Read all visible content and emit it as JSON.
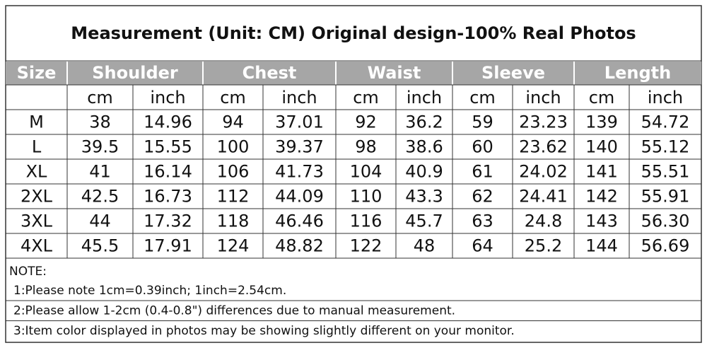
{
  "title": "Measurement (Unit: CM) Original design-100% Real Photos",
  "table": {
    "header": [
      "Size",
      "Shoulder",
      "Chest",
      "Waist",
      "Sleeve",
      "Length"
    ],
    "units": [
      "cm",
      "inch",
      "cm",
      "inch",
      "cm",
      "inch",
      "cm",
      "inch",
      "cm",
      "inch"
    ],
    "rows": [
      [
        "M",
        "38",
        "14.96",
        "94",
        "37.01",
        "92",
        "36.2",
        "59",
        "23.23",
        "139",
        "54.72"
      ],
      [
        "L",
        "39.5",
        "15.55",
        "100",
        "39.37",
        "98",
        "38.6",
        "60",
        "23.62",
        "140",
        "55.12"
      ],
      [
        "XL",
        "41",
        "16.14",
        "106",
        "41.73",
        "104",
        "40.9",
        "61",
        "24.02",
        "141",
        "55.51"
      ],
      [
        "2XL",
        "42.5",
        "16.73",
        "112",
        "44.09",
        "110",
        "43.3",
        "62",
        "24.41",
        "142",
        "55.91"
      ],
      [
        "3XL",
        "44",
        "17.32",
        "118",
        "46.46",
        "116",
        "45.7",
        "63",
        "24.8",
        "143",
        "56.30"
      ],
      [
        "4XL",
        "45.5",
        "17.91",
        "124",
        "48.82",
        "122",
        "48",
        "64",
        "25.2",
        "144",
        "56.69"
      ]
    ]
  },
  "notes": {
    "heading": "NOTE:",
    "items": [
      "1:Please note 1cm=0.39inch; 1inch=2.54cm.",
      "2:Please allow 1-2cm (0.4-0.8\") differences due to manual measurement.",
      "3:Item color displayed in photos may be showing slightly different on your monitor."
    ]
  }
}
